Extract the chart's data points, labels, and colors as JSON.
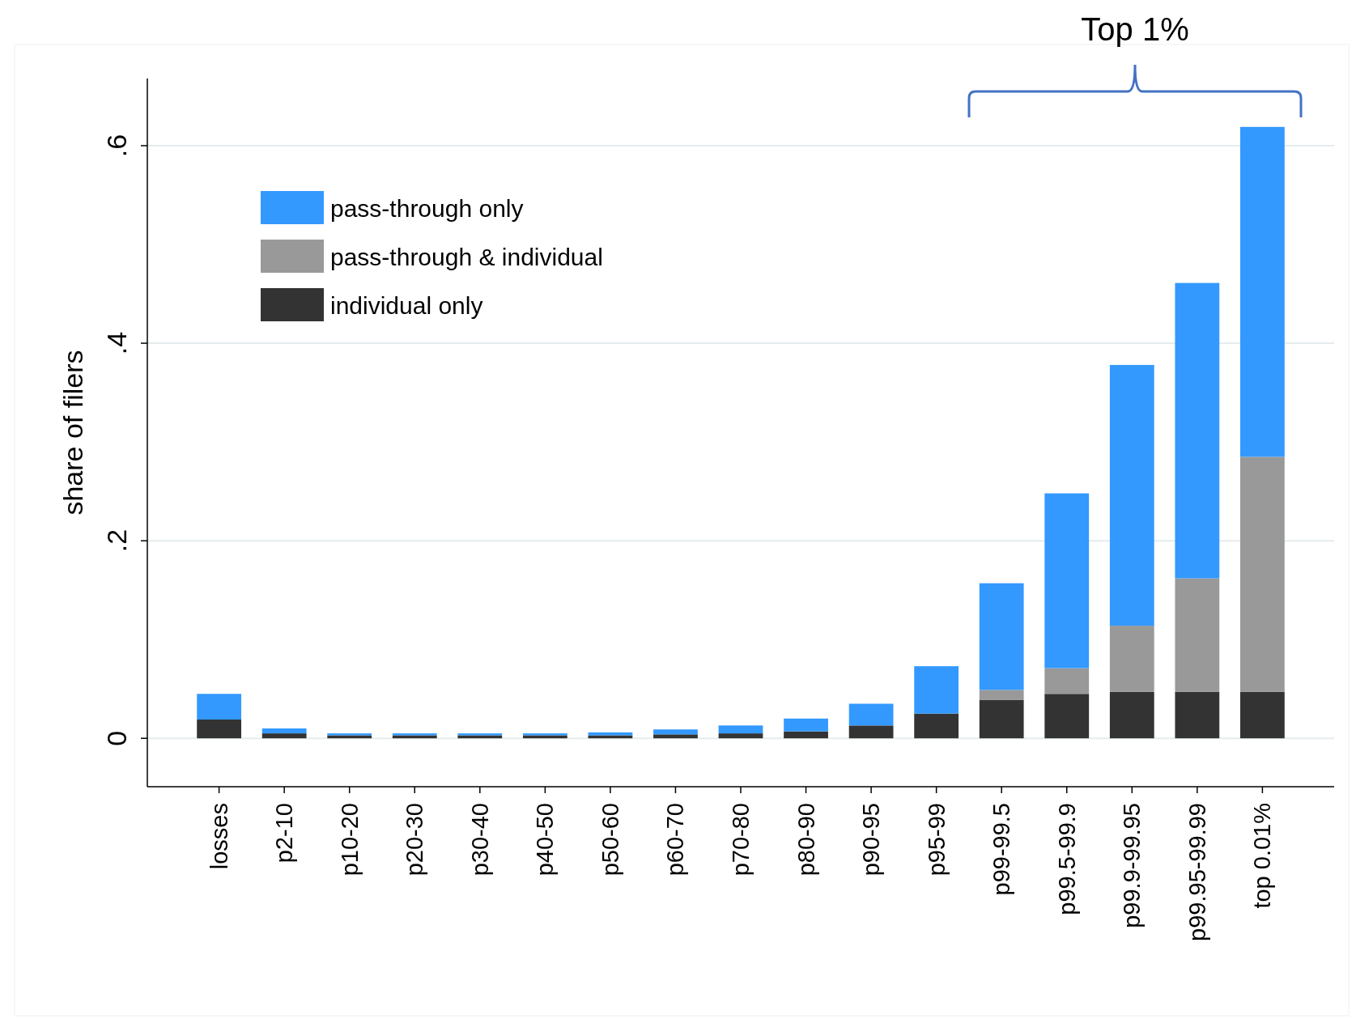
{
  "chart_data": {
    "type": "bar",
    "stacked": true,
    "ylabel": "share of filers",
    "annotations": [
      "Top 1%"
    ],
    "categories": [
      "losses",
      "p2-10",
      "p10-20",
      "p20-30",
      "p30-40",
      "p40-50",
      "p50-60",
      "p60-70",
      "p70-80",
      "p80-90",
      "p90-95",
      "p95-99",
      "p99-99.5",
      "p99.5-99.9",
      "p99.9-99.95",
      "p99.95-99.99",
      "top 0.01%"
    ],
    "series": [
      {
        "name": "individual only",
        "color": "#333333",
        "values": [
          0.019,
          0.005,
          0.003,
          0.003,
          0.003,
          0.003,
          0.003,
          0.004,
          0.005,
          0.007,
          0.013,
          0.025,
          0.039,
          0.045,
          0.047,
          0.047,
          0.047
        ]
      },
      {
        "name": "pass-through & individual",
        "color": "#999999",
        "values": [
          0,
          0,
          0,
          0,
          0,
          0,
          0,
          0,
          0,
          0,
          0,
          0,
          0.01,
          0.026,
          0.067,
          0.115,
          0.238
        ]
      },
      {
        "name": "pass-through only",
        "color": "#3399ff",
        "values": [
          0.026,
          0.005,
          0.002,
          0.002,
          0.002,
          0.002,
          0.003,
          0.005,
          0.008,
          0.013,
          0.022,
          0.048,
          0.108,
          0.177,
          0.264,
          0.299,
          0.334
        ]
      }
    ],
    "ylim": [
      -0.049,
      0.668
    ],
    "yticks": [
      {
        "value": 0,
        "label": "0"
      },
      {
        "value": 0.2,
        "label": ".2"
      },
      {
        "value": 0.4,
        "label": ".4"
      },
      {
        "value": 0.6,
        "label": ".6"
      }
    ],
    "grid": "y",
    "legend": "top left"
  }
}
